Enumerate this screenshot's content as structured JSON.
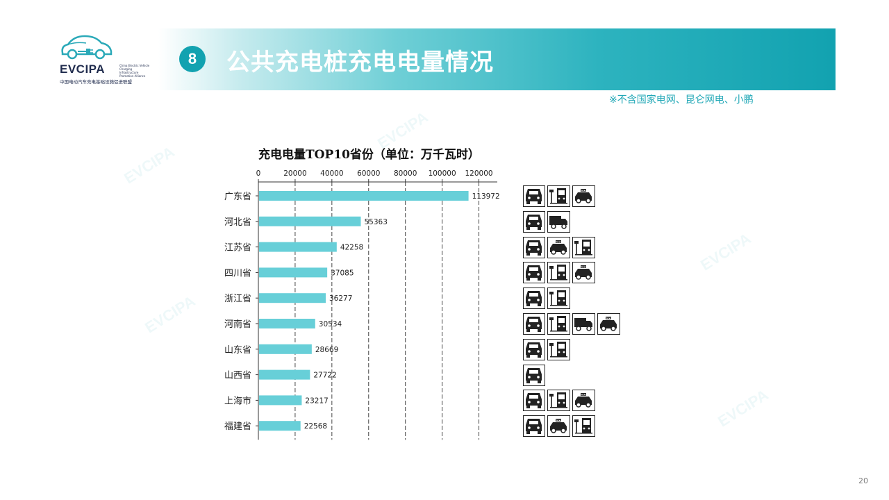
{
  "logo": {
    "name": "EVCIPA",
    "english": "China Electric Vehicle Charging Infrastructure Promotion Alliance",
    "chinese": "中国电动汽车充电基础设施促进联盟"
  },
  "header": {
    "badge": "8",
    "title": "公共充电桩充电电量情况"
  },
  "note": "※不含国家电网、昆仑网电、小鹏",
  "page_number": "20",
  "watermark": "EVCIPA",
  "colors": {
    "accent": "#12a2b0",
    "bar": "#67cfd8",
    "note": "#1fa7b6"
  },
  "chart_data": {
    "type": "bar",
    "orientation": "horizontal",
    "title": "充电电量TOP10省份（单位：万千瓦时）",
    "categories": [
      "广东省",
      "河北省",
      "江苏省",
      "四川省",
      "浙江省",
      "河南省",
      "山东省",
      "山西省",
      "上海市",
      "福建省"
    ],
    "values": [
      113972,
      55363,
      42258,
      37085,
      36277,
      30534,
      28669,
      27722,
      23217,
      22568
    ],
    "xlim": [
      0,
      130000
    ],
    "xticks": [
      0,
      20000,
      40000,
      60000,
      80000,
      100000,
      120000
    ],
    "grid": "vertical-dashed",
    "axis_position": "top",
    "data_labels": true
  },
  "vehicle_icons": [
    [
      "private-car-icon",
      "bus-icon",
      "taxi-icon"
    ],
    [
      "private-car-icon",
      "truck-icon"
    ],
    [
      "private-car-icon",
      "taxi-icon",
      "bus-icon"
    ],
    [
      "private-car-icon",
      "bus-icon",
      "taxi-icon"
    ],
    [
      "private-car-icon",
      "bus-icon"
    ],
    [
      "private-car-icon",
      "bus-icon",
      "truck-icon",
      "taxi-icon"
    ],
    [
      "private-car-icon",
      "bus-icon"
    ],
    [
      "private-car-icon"
    ],
    [
      "private-car-icon",
      "bus-icon",
      "taxi-icon"
    ],
    [
      "private-car-icon",
      "taxi-icon",
      "bus-icon"
    ]
  ],
  "taxi_label": "TAXI"
}
